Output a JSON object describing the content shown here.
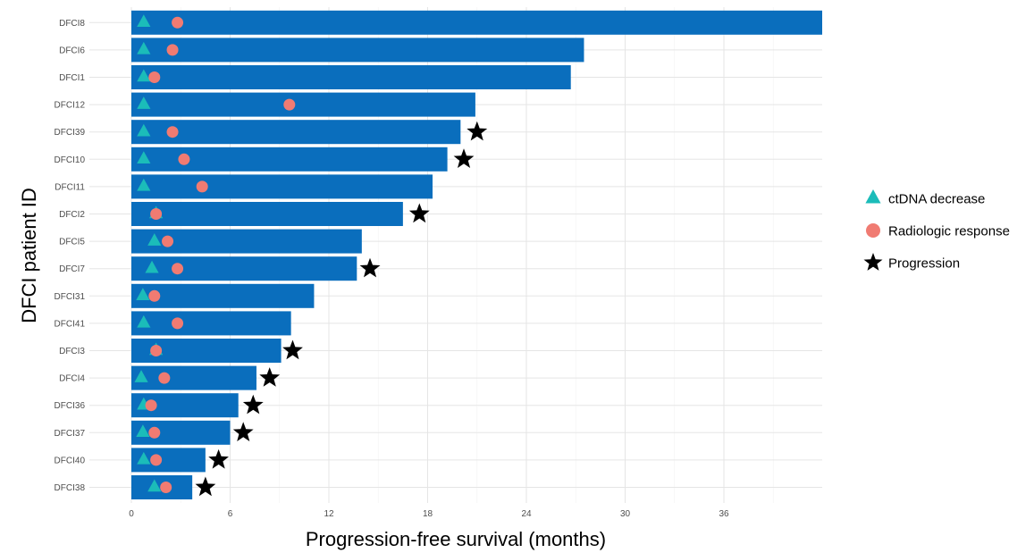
{
  "chart_data": {
    "type": "bar",
    "orientation": "horizontal",
    "title": "",
    "xlabel": "Progression-free survival (months)",
    "ylabel": "DFCI patient ID",
    "xlim": [
      0,
      42
    ],
    "xticks": [
      0,
      6,
      12,
      18,
      24,
      30,
      36
    ],
    "grid": true,
    "legend_position": "right",
    "colors": {
      "bar": "#0a6ebd",
      "ctdna": "#1bbcb9",
      "radiologic": "#f07b72",
      "progression": "#000000",
      "grid": "#e5e5e5"
    },
    "categories": [
      "DFCI8",
      "DFCI6",
      "DFCI1",
      "DFCI12",
      "DFCI39",
      "DFCI10",
      "DFCI11",
      "DFCI2",
      "DFCI5",
      "DFCI7",
      "DFCI31",
      "DFCI41",
      "DFCI3",
      "DFCI4",
      "DFCI36",
      "DFCI37",
      "DFCI40",
      "DFCI38"
    ],
    "values": [
      42,
      27.5,
      26.7,
      20.9,
      20.0,
      19.2,
      18.3,
      16.5,
      14.0,
      13.7,
      11.1,
      9.7,
      9.1,
      7.6,
      6.5,
      6.0,
      4.5,
      3.7
    ],
    "ctdna_decrease": [
      0.75,
      0.75,
      0.75,
      0.75,
      0.75,
      0.75,
      0.75,
      1.5,
      1.4,
      1.25,
      0.7,
      0.75,
      1.5,
      0.6,
      0.75,
      0.7,
      0.75,
      1.4
    ],
    "radiologic_response": [
      2.8,
      2.5,
      1.4,
      9.6,
      2.5,
      3.2,
      4.3,
      1.5,
      2.2,
      2.8,
      1.4,
      2.8,
      1.5,
      2.0,
      1.2,
      1.4,
      1.5,
      2.1
    ],
    "progression": [
      null,
      null,
      null,
      null,
      21.0,
      20.2,
      null,
      17.5,
      null,
      14.5,
      null,
      null,
      9.8,
      8.4,
      7.4,
      6.8,
      5.3,
      4.5
    ],
    "legend": [
      {
        "marker": "triangle",
        "label": "ctDNA decrease"
      },
      {
        "marker": "circle",
        "label": "Radiologic response"
      },
      {
        "marker": "star",
        "label": "Progression"
      }
    ]
  }
}
